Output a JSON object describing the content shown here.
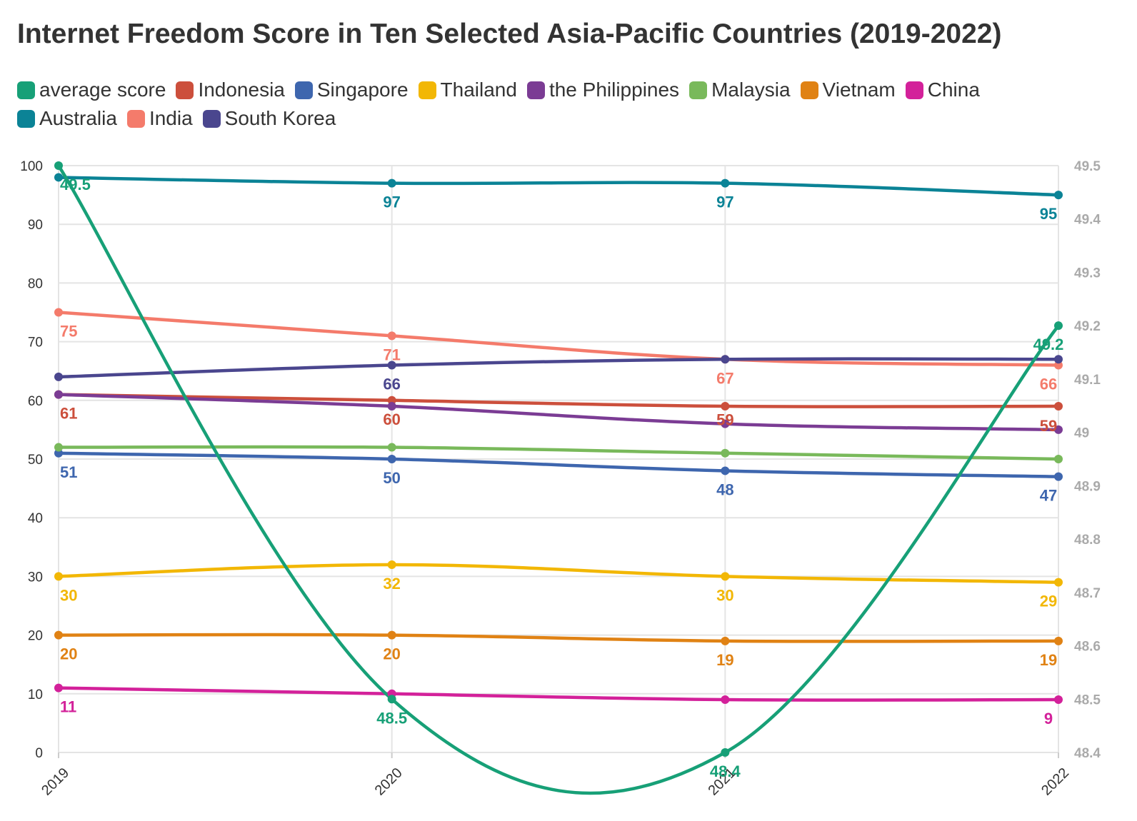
{
  "title": "Internet Freedom Score in Ten Selected Asia-Pacific Countries (2019-2022)",
  "chart_data": {
    "type": "line",
    "categories": [
      "2019",
      "2020",
      "2021",
      "2022"
    ],
    "y_left": {
      "min": 0,
      "max": 100,
      "ticks": [
        0,
        10,
        20,
        30,
        40,
        50,
        60,
        70,
        80,
        90,
        100
      ],
      "tick_labels": [
        "0",
        "10",
        "20",
        "30",
        "40",
        "50",
        "60",
        "70",
        "80",
        "90",
        "100"
      ]
    },
    "y_right": {
      "min": 48.4,
      "max": 49.5,
      "ticks": [
        48.4,
        48.5,
        48.6,
        48.7,
        48.8,
        48.9,
        49.0,
        49.1,
        49.2,
        49.3,
        49.4,
        49.5
      ],
      "tick_labels": [
        "48.4",
        "48.5",
        "48.6",
        "48.7",
        "48.8",
        "48.9",
        "49",
        "49.1",
        "49.2",
        "49.3",
        "49.4",
        "49.5"
      ]
    },
    "grid": true,
    "legend_position": "top",
    "series": [
      {
        "name": "average score",
        "color": "#17a077",
        "axis": "right",
        "values": [
          49.5,
          48.5,
          48.4,
          49.2
        ],
        "labels": [
          "49.5",
          "48.5",
          "48.4",
          "49.2"
        ]
      },
      {
        "name": "Indonesia",
        "color": "#cc4f3c",
        "axis": "left",
        "values": [
          61,
          60,
          59,
          59
        ],
        "labels": [
          "61",
          "60",
          "",
          ""
        ]
      },
      {
        "name": "Singapore",
        "color": "#3e66ae",
        "axis": "left",
        "values": [
          51,
          50,
          48,
          47
        ],
        "labels": [
          "51",
          "50",
          "48",
          "47"
        ]
      },
      {
        "name": "Thailand",
        "color": "#f2b705",
        "axis": "left",
        "values": [
          30,
          32,
          30,
          29
        ],
        "labels": [
          "30",
          "32",
          "30",
          "29"
        ]
      },
      {
        "name": "the Philippines",
        "color": "#7b3c94",
        "axis": "left",
        "values": [
          61,
          59,
          56,
          55
        ],
        "labels": [
          "",
          "",
          "",
          ""
        ]
      },
      {
        "name": "Malaysia",
        "color": "#79b95b",
        "axis": "left",
        "values": [
          52,
          52,
          51,
          50
        ],
        "labels": [
          "",
          "",
          "",
          ""
        ]
      },
      {
        "name": "Vietnam",
        "color": "#e08214",
        "axis": "left",
        "values": [
          20,
          20,
          19,
          19
        ],
        "labels": [
          "20",
          "20",
          "19",
          "19"
        ]
      },
      {
        "name": "China",
        "color": "#d3219a",
        "axis": "left",
        "values": [
          11,
          10,
          9,
          9
        ],
        "labels": [
          "11",
          "",
          "",
          "9"
        ]
      },
      {
        "name": "Australia",
        "color": "#0b8396",
        "axis": "left",
        "values": [
          98,
          97,
          97,
          95
        ],
        "labels": [
          "",
          "97",
          "97",
          "95"
        ]
      },
      {
        "name": "India",
        "color": "#f47b6b",
        "axis": "left",
        "values": [
          75,
          71,
          67,
          66
        ],
        "labels": [
          "75",
          "71",
          "67",
          "66"
        ]
      },
      {
        "name": "South Korea",
        "color": "#4a468e",
        "axis": "left",
        "values": [
          64,
          66,
          67,
          67
        ],
        "labels": [
          "",
          "66",
          "",
          ""
        ]
      }
    ],
    "extra_labels": [
      {
        "text": "59",
        "color": "#cc4f3c",
        "category": "2021",
        "series": "the Philippines"
      },
      {
        "text": "59",
        "color": "#cc4f3c",
        "category": "2022",
        "series": "the Philippines"
      }
    ]
  }
}
